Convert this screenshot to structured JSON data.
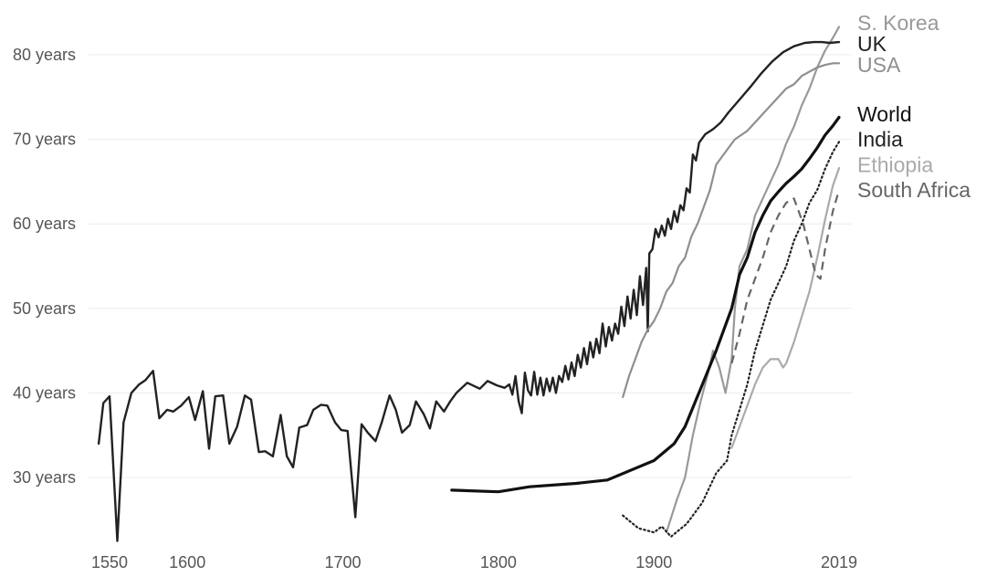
{
  "chart_data": {
    "type": "line",
    "title": "",
    "xlabel": "",
    "ylabel": "",
    "xlim": [
      1550,
      2019
    ],
    "ylim": [
      22,
      84
    ],
    "grid": true,
    "legend": "direct labels at right end of lines",
    "y_ticks": [
      {
        "value": 30,
        "label": "30 years"
      },
      {
        "value": 40,
        "label": "40 years"
      },
      {
        "value": 50,
        "label": "50 years"
      },
      {
        "value": 60,
        "label": "60 years"
      },
      {
        "value": 70,
        "label": "70 years"
      },
      {
        "value": 80,
        "label": "80 years"
      }
    ],
    "x_ticks": [
      {
        "value": 1550,
        "label": "1550"
      },
      {
        "value": 1600,
        "label": "1600"
      },
      {
        "value": 1700,
        "label": "1700"
      },
      {
        "value": 1800,
        "label": "1800"
      },
      {
        "value": 1900,
        "label": "1900"
      },
      {
        "value": 2019,
        "label": "2019"
      }
    ],
    "series": [
      {
        "name": "S. Korea",
        "color": "#999999",
        "style": "solid",
        "width": 2.2,
        "values": [
          [
            1908,
            23.5
          ],
          [
            1915,
            27.5
          ],
          [
            1920,
            30
          ],
          [
            1925,
            35
          ],
          [
            1930,
            39
          ],
          [
            1935,
            42.5
          ],
          [
            1938,
            45
          ],
          [
            1942,
            43
          ],
          [
            1946,
            40
          ],
          [
            1950,
            44
          ],
          [
            1952,
            50
          ],
          [
            1955,
            55
          ],
          [
            1960,
            57
          ],
          [
            1965,
            61
          ],
          [
            1970,
            63
          ],
          [
            1975,
            65
          ],
          [
            1980,
            67
          ],
          [
            1985,
            69.5
          ],
          [
            1990,
            71.5
          ],
          [
            1995,
            74
          ],
          [
            2000,
            76
          ],
          [
            2005,
            78.5
          ],
          [
            2010,
            80.5
          ],
          [
            2015,
            82
          ],
          [
            2019,
            83.3
          ]
        ],
        "label_value": 83.8
      },
      {
        "name": "UK",
        "color": "#222222",
        "style": "solid",
        "width": 2.4,
        "values": [
          [
            1543,
            34
          ],
          [
            1546,
            38.8
          ],
          [
            1550,
            39.6
          ],
          [
            1555,
            22.5
          ],
          [
            1559,
            36.5
          ],
          [
            1564,
            40
          ],
          [
            1569,
            41
          ],
          [
            1573,
            41.5
          ],
          [
            1578,
            42.6
          ],
          [
            1582,
            37
          ],
          [
            1587,
            38
          ],
          [
            1591,
            37.8
          ],
          [
            1596,
            38.5
          ],
          [
            1601,
            39.5
          ],
          [
            1605,
            36.8
          ],
          [
            1610,
            40.2
          ],
          [
            1614,
            33.4
          ],
          [
            1618,
            39.6
          ],
          [
            1623,
            39.7
          ],
          [
            1627,
            34
          ],
          [
            1632,
            36
          ],
          [
            1637,
            39.7
          ],
          [
            1641,
            39.2
          ],
          [
            1646,
            33
          ],
          [
            1650,
            33.1
          ],
          [
            1655,
            32.5
          ],
          [
            1660,
            37.4
          ],
          [
            1664,
            32.5
          ],
          [
            1668,
            31.2
          ],
          [
            1672,
            35.9
          ],
          [
            1677,
            36.2
          ],
          [
            1681,
            38
          ],
          [
            1686,
            38.6
          ],
          [
            1690,
            38.5
          ],
          [
            1695,
            36.5
          ],
          [
            1699,
            35.6
          ],
          [
            1703,
            35.5
          ],
          [
            1708,
            25.3
          ],
          [
            1712,
            36.3
          ],
          [
            1716,
            35.3
          ],
          [
            1721,
            34.3
          ],
          [
            1725,
            36.5
          ],
          [
            1730,
            39.7
          ],
          [
            1734,
            38
          ],
          [
            1738,
            35.3
          ],
          [
            1743,
            36.2
          ],
          [
            1747,
            39
          ],
          [
            1752,
            37.5
          ],
          [
            1756,
            35.8
          ],
          [
            1760,
            39
          ],
          [
            1765,
            37.8
          ],
          [
            1769,
            39
          ],
          [
            1773,
            40
          ],
          [
            1780,
            41.2
          ],
          [
            1788,
            40.5
          ],
          [
            1793,
            41.4
          ],
          [
            1799,
            40.9
          ],
          [
            1804,
            40.6
          ],
          [
            1807,
            41
          ],
          [
            1809,
            39.8
          ],
          [
            1811,
            42
          ],
          [
            1813,
            39
          ],
          [
            1815,
            37.6
          ],
          [
            1817,
            42.4
          ],
          [
            1819,
            40.3
          ],
          [
            1821,
            39.7
          ],
          [
            1823,
            42.5
          ],
          [
            1825,
            39.8
          ],
          [
            1827,
            41.8
          ],
          [
            1829,
            39.7
          ],
          [
            1831,
            41.7
          ],
          [
            1833,
            40.2
          ],
          [
            1835,
            41.8
          ],
          [
            1837,
            40
          ],
          [
            1839,
            42
          ],
          [
            1841,
            41.3
          ],
          [
            1843,
            43.2
          ],
          [
            1845,
            41.6
          ],
          [
            1847,
            43.6
          ],
          [
            1849,
            42
          ],
          [
            1851,
            44.5
          ],
          [
            1853,
            43
          ],
          [
            1855,
            45.3
          ],
          [
            1857,
            43.4
          ],
          [
            1859,
            46
          ],
          [
            1861,
            44.2
          ],
          [
            1863,
            46.4
          ],
          [
            1865,
            44.7
          ],
          [
            1867,
            48.2
          ],
          [
            1869,
            45.5
          ],
          [
            1871,
            47.8
          ],
          [
            1873,
            46.2
          ],
          [
            1875,
            48.2
          ],
          [
            1877,
            47
          ],
          [
            1879,
            50.2
          ],
          [
            1881,
            47.9
          ],
          [
            1883,
            51.4
          ],
          [
            1885,
            48.8
          ],
          [
            1887,
            52.2
          ],
          [
            1889,
            49.2
          ],
          [
            1891,
            53.8
          ],
          [
            1893,
            50.4
          ],
          [
            1895,
            54.8
          ],
          [
            1896,
            47.3
          ],
          [
            1897,
            56.5
          ],
          [
            1899,
            57
          ],
          [
            1901,
            59.4
          ],
          [
            1903,
            58.4
          ],
          [
            1905,
            59.8
          ],
          [
            1907,
            58.6
          ],
          [
            1909,
            60.6
          ],
          [
            1911,
            59.4
          ],
          [
            1913,
            61.5
          ],
          [
            1915,
            60.2
          ],
          [
            1917,
            62.2
          ],
          [
            1919,
            61.6
          ],
          [
            1921,
            64.2
          ],
          [
            1923,
            63.7
          ],
          [
            1925,
            68.2
          ],
          [
            1927,
            67.5
          ],
          [
            1929,
            69.6
          ],
          [
            1933,
            70.6
          ],
          [
            1938,
            71.2
          ],
          [
            1943,
            72
          ],
          [
            1948,
            73.2
          ],
          [
            1955,
            74.7
          ],
          [
            1962,
            76.2
          ],
          [
            1969,
            77.8
          ],
          [
            1976,
            79.2
          ],
          [
            1983,
            80.3
          ],
          [
            1990,
            81
          ],
          [
            1997,
            81.4
          ],
          [
            2003,
            81.5
          ],
          [
            2008,
            81.5
          ],
          [
            2013,
            81.4
          ],
          [
            2019,
            81.5
          ]
        ],
        "label_value": 81.3
      },
      {
        "name": "USA",
        "color": "#8f8f8f",
        "style": "solid",
        "width": 2.2,
        "values": [
          [
            1880,
            39.5
          ],
          [
            1884,
            42
          ],
          [
            1888,
            44
          ],
          [
            1892,
            46
          ],
          [
            1896,
            47.5
          ],
          [
            1900,
            48.5
          ],
          [
            1904,
            50
          ],
          [
            1908,
            52
          ],
          [
            1912,
            53
          ],
          [
            1916,
            55
          ],
          [
            1920,
            56
          ],
          [
            1924,
            58.5
          ],
          [
            1928,
            60
          ],
          [
            1932,
            62
          ],
          [
            1936,
            64
          ],
          [
            1940,
            67
          ],
          [
            1944,
            68
          ],
          [
            1948,
            69
          ],
          [
            1952,
            70
          ],
          [
            1956,
            70.5
          ],
          [
            1960,
            71
          ],
          [
            1965,
            72
          ],
          [
            1970,
            73
          ],
          [
            1975,
            74
          ],
          [
            1980,
            75
          ],
          [
            1985,
            76
          ],
          [
            1990,
            76.5
          ],
          [
            1995,
            77.5
          ],
          [
            2000,
            78
          ],
          [
            2005,
            78.5
          ],
          [
            2010,
            78.8
          ],
          [
            2015,
            79
          ],
          [
            2019,
            79
          ]
        ],
        "label_value": 78.8
      },
      {
        "name": "World",
        "color": "#111111",
        "style": "solid",
        "width": 3.2,
        "values": [
          [
            1770,
            28.5
          ],
          [
            1800,
            28.3
          ],
          [
            1820,
            28.9
          ],
          [
            1850,
            29.3
          ],
          [
            1870,
            29.7
          ],
          [
            1900,
            32
          ],
          [
            1913,
            34
          ],
          [
            1920,
            36
          ],
          [
            1930,
            40.5
          ],
          [
            1940,
            45
          ],
          [
            1950,
            50
          ],
          [
            1955,
            54
          ],
          [
            1960,
            56
          ],
          [
            1965,
            59
          ],
          [
            1970,
            61
          ],
          [
            1975,
            62.7
          ],
          [
            1980,
            63.8
          ],
          [
            1985,
            64.8
          ],
          [
            1990,
            65.6
          ],
          [
            1995,
            66.5
          ],
          [
            2000,
            67.7
          ],
          [
            2005,
            69
          ],
          [
            2010,
            70.5
          ],
          [
            2015,
            71.6
          ],
          [
            2019,
            72.6
          ]
        ],
        "label_value": 73
      },
      {
        "name": "India",
        "color": "#222222",
        "style": "dotted",
        "width": 2.2,
        "values": [
          [
            1880,
            25.5
          ],
          [
            1890,
            24
          ],
          [
            1900,
            23.5
          ],
          [
            1905,
            24.2
          ],
          [
            1911,
            23
          ],
          [
            1921,
            24.5
          ],
          [
            1931,
            27
          ],
          [
            1940,
            30.5
          ],
          [
            1947,
            32
          ],
          [
            1950,
            35
          ],
          [
            1955,
            38
          ],
          [
            1960,
            41
          ],
          [
            1965,
            45
          ],
          [
            1970,
            48
          ],
          [
            1975,
            51
          ],
          [
            1980,
            53
          ],
          [
            1985,
            55
          ],
          [
            1990,
            58
          ],
          [
            1995,
            60
          ],
          [
            2000,
            62.5
          ],
          [
            2005,
            64
          ],
          [
            2010,
            66.5
          ],
          [
            2015,
            68.5
          ],
          [
            2019,
            69.7
          ]
        ],
        "label_value": 70
      },
      {
        "name": "Ethiopia",
        "color": "#aaaaaa",
        "style": "solid",
        "width": 2.2,
        "values": [
          [
            1950,
            33.5
          ],
          [
            1955,
            36
          ],
          [
            1960,
            38.5
          ],
          [
            1965,
            41
          ],
          [
            1970,
            43
          ],
          [
            1975,
            44
          ],
          [
            1980,
            44
          ],
          [
            1983,
            43
          ],
          [
            1985,
            43.5
          ],
          [
            1990,
            46
          ],
          [
            1995,
            49
          ],
          [
            2000,
            52
          ],
          [
            2005,
            56
          ],
          [
            2010,
            60.5
          ],
          [
            2015,
            64.5
          ],
          [
            2019,
            66.6
          ]
        ],
        "label_value": 67
      },
      {
        "name": "South Africa",
        "color": "#666666",
        "style": "dashed",
        "width": 2.2,
        "values": [
          [
            1950,
            43.5
          ],
          [
            1955,
            47
          ],
          [
            1960,
            51
          ],
          [
            1965,
            53.5
          ],
          [
            1970,
            56
          ],
          [
            1975,
            59
          ],
          [
            1980,
            61
          ],
          [
            1985,
            62.5
          ],
          [
            1990,
            63
          ],
          [
            1993,
            61.5
          ],
          [
            1996,
            60
          ],
          [
            2000,
            57
          ],
          [
            2004,
            54
          ],
          [
            2007,
            53.5
          ],
          [
            2010,
            57
          ],
          [
            2015,
            61.5
          ],
          [
            2019,
            64
          ]
        ],
        "label_value": 64
      }
    ]
  }
}
